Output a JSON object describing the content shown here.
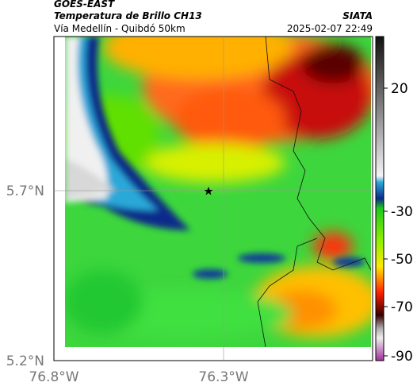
{
  "header": {
    "source": "GOES-EAST",
    "title": "Temperatura de Brillo CH13",
    "org": "SIATA",
    "route": "Vía Medellín - Quibdó 50km",
    "timestamp": "2025-02-07 22:49"
  },
  "axes": {
    "lat_labels": [
      "5.7°N",
      "5.2°N"
    ],
    "lon_labels": [
      "76.8°W",
      "76.3°W"
    ]
  },
  "colorbar": {
    "ticks": [
      20,
      -30,
      -50,
      -70,
      -90
    ]
  }
}
